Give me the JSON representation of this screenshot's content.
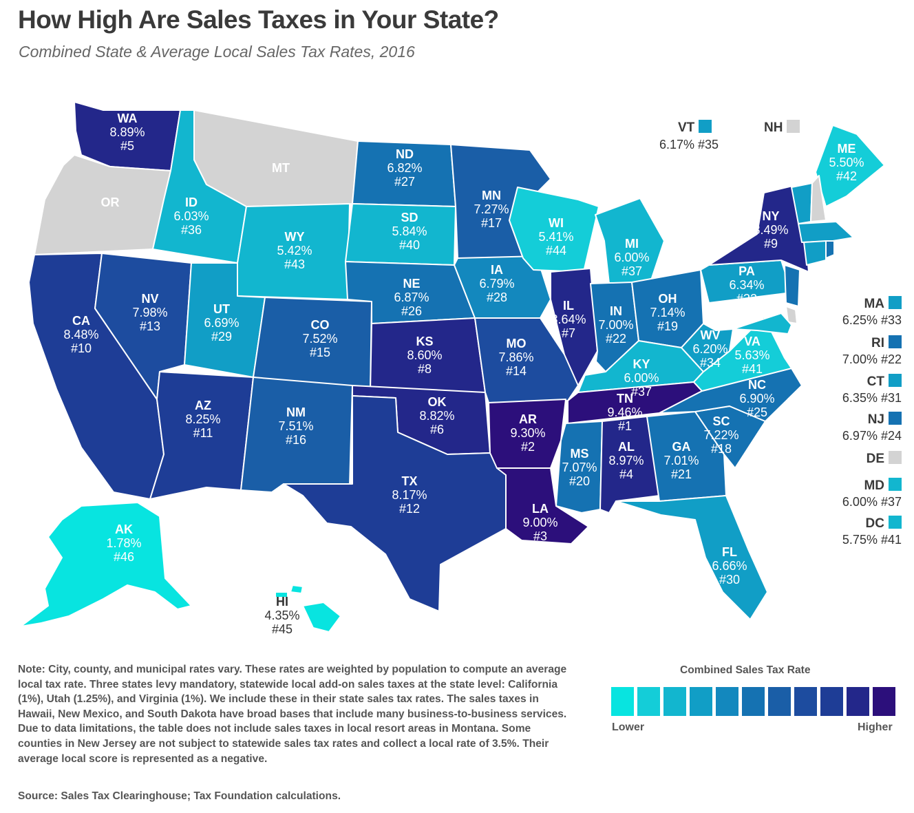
{
  "title": "How High Are Sales Taxes in Your State?",
  "subtitle": "Combined State & Average Local Sales Tax Rates, 2016",
  "colors": {
    "scale": [
      "#08e4e0",
      "#14cdd8",
      "#12b6cf",
      "#119ec6",
      "#1388be",
      "#1572b2",
      "#1a5ea7",
      "#1d4c9f",
      "#1e3d96",
      "#23278a",
      "#2c0f7b"
    ],
    "no_tax": "#d3d3d3",
    "border": "#ffffff"
  },
  "states": [
    {
      "abbr": "WA",
      "rate": "8.89%",
      "rank": "#5",
      "color": "#23278a"
    },
    {
      "abbr": "OR",
      "rate": "",
      "rank": "",
      "color": "#d3d3d3"
    },
    {
      "abbr": "CA",
      "rate": "8.48%",
      "rank": "#10",
      "color": "#1e3d96"
    },
    {
      "abbr": "NV",
      "rate": "7.98%",
      "rank": "#13",
      "color": "#1d4c9f"
    },
    {
      "abbr": "ID",
      "rate": "6.03%",
      "rank": "#36",
      "color": "#12b6cf"
    },
    {
      "abbr": "MT",
      "rate": "",
      "rank": "",
      "color": "#d3d3d3"
    },
    {
      "abbr": "WY",
      "rate": "5.42%",
      "rank": "#43",
      "color": "#12b6cf"
    },
    {
      "abbr": "UT",
      "rate": "6.69%",
      "rank": "#29",
      "color": "#119ec6"
    },
    {
      "abbr": "AZ",
      "rate": "8.25%",
      "rank": "#11",
      "color": "#1e3d96"
    },
    {
      "abbr": "CO",
      "rate": "7.52%",
      "rank": "#15",
      "color": "#1a5ea7"
    },
    {
      "abbr": "NM",
      "rate": "7.51%",
      "rank": "#16",
      "color": "#1a5ea7"
    },
    {
      "abbr": "ND",
      "rate": "6.82%",
      "rank": "#27",
      "color": "#1572b2"
    },
    {
      "abbr": "SD",
      "rate": "5.84%",
      "rank": "#40",
      "color": "#12b6cf"
    },
    {
      "abbr": "NE",
      "rate": "6.87%",
      "rank": "#26",
      "color": "#1572b2"
    },
    {
      "abbr": "KS",
      "rate": "8.60%",
      "rank": "#8",
      "color": "#23278a"
    },
    {
      "abbr": "OK",
      "rate": "8.82%",
      "rank": "#6",
      "color": "#23278a"
    },
    {
      "abbr": "TX",
      "rate": "8.17%",
      "rank": "#12",
      "color": "#1e3d96"
    },
    {
      "abbr": "MN",
      "rate": "7.27%",
      "rank": "#17",
      "color": "#1a5ea7"
    },
    {
      "abbr": "IA",
      "rate": "6.79%",
      "rank": "#28",
      "color": "#1388be"
    },
    {
      "abbr": "MO",
      "rate": "7.86%",
      "rank": "#14",
      "color": "#1d4c9f"
    },
    {
      "abbr": "AR",
      "rate": "9.30%",
      "rank": "#2",
      "color": "#2c0f7b"
    },
    {
      "abbr": "LA",
      "rate": "9.00%",
      "rank": "#3",
      "color": "#2c0f7b"
    },
    {
      "abbr": "WI",
      "rate": "5.41%",
      "rank": "#44",
      "color": "#14cdd8"
    },
    {
      "abbr": "IL",
      "rate": "8.64%",
      "rank": "#7",
      "color": "#23278a"
    },
    {
      "abbr": "MI",
      "rate": "6.00%",
      "rank": "#37",
      "color": "#12b6cf"
    },
    {
      "abbr": "IN",
      "rate": "7.00%",
      "rank": "#22",
      "color": "#1572b2"
    },
    {
      "abbr": "OH",
      "rate": "7.14%",
      "rank": "#19",
      "color": "#1572b2"
    },
    {
      "abbr": "KY",
      "rate": "6.00%",
      "rank": "#37",
      "color": "#12b6cf"
    },
    {
      "abbr": "TN",
      "rate": "9.46%",
      "rank": "#1",
      "color": "#2c0f7b"
    },
    {
      "abbr": "MS",
      "rate": "7.07%",
      "rank": "#20",
      "color": "#1572b2"
    },
    {
      "abbr": "AL",
      "rate": "8.97%",
      "rank": "#4",
      "color": "#23278a"
    },
    {
      "abbr": "GA",
      "rate": "7.01%",
      "rank": "#21",
      "color": "#1572b2"
    },
    {
      "abbr": "FL",
      "rate": "6.66%",
      "rank": "#30",
      "color": "#119ec6"
    },
    {
      "abbr": "SC",
      "rate": "7.22%",
      "rank": "#18",
      "color": "#1572b2"
    },
    {
      "abbr": "NC",
      "rate": "6.90%",
      "rank": "#25",
      "color": "#1572b2"
    },
    {
      "abbr": "VA",
      "rate": "5.63%",
      "rank": "#41",
      "color": "#14cdd8"
    },
    {
      "abbr": "WV",
      "rate": "6.20%",
      "rank": "#34",
      "color": "#119ec6"
    },
    {
      "abbr": "PA",
      "rate": "6.34%",
      "rank": "#32",
      "color": "#119ec6"
    },
    {
      "abbr": "NY",
      "rate": "8.49%",
      "rank": "#9",
      "color": "#23278a"
    },
    {
      "abbr": "ME",
      "rate": "5.50%",
      "rank": "#42",
      "color": "#14cdd8"
    },
    {
      "abbr": "AK",
      "rate": "1.78%",
      "rank": "#46",
      "color": "#08e4e0"
    },
    {
      "abbr": "HI",
      "rate": "4.35%",
      "rank": "#45",
      "color": "#08e4e0"
    }
  ],
  "top_callouts": {
    "vt": {
      "abbr": "VT",
      "value": "6.17% #35",
      "color": "#119ec6"
    },
    "nh": {
      "abbr": "NH",
      "color": "#d3d3d3"
    }
  },
  "small_states": [
    {
      "abbr": "MA",
      "value": "6.25% #33",
      "color": "#119ec6"
    },
    {
      "abbr": "RI",
      "value": "7.00% #22",
      "color": "#1572b2"
    },
    {
      "abbr": "CT",
      "value": "6.35% #31",
      "color": "#119ec6"
    },
    {
      "abbr": "NJ",
      "value": "6.97% #24",
      "color": "#1572b2"
    },
    {
      "abbr": "DE",
      "value": "",
      "color": "#d3d3d3"
    },
    {
      "abbr": "MD",
      "value": "6.00% #37",
      "color": "#12b6cf"
    },
    {
      "abbr": "DC",
      "value": "5.75% #41",
      "color": "#12b6cf"
    }
  ],
  "note": "Note: City, county, and municipal rates vary. These rates are weighted by population to compute an average local tax rate. Three states levy mandatory, statewide local add-on sales taxes at the state level: California (1%), Utah (1.25%), and Virginia (1%). We include these in their state sales tax rates. The sales taxes in Hawaii, New Mexico, and South Dakota have broad bases that include many business-to-business services. Due to data limitations, the table does not include sales taxes in local resort areas in Montana. Some counties in New Jersey are not subject to statewide sales tax rates and collect a local rate of 3.5%. Their average local score is represented as a negative.",
  "source": "Source: Sales Tax Clearinghouse; Tax Foundation calculations.",
  "legend": {
    "title": "Combined Sales Tax Rate",
    "low": "Lower",
    "high": "Higher"
  }
}
